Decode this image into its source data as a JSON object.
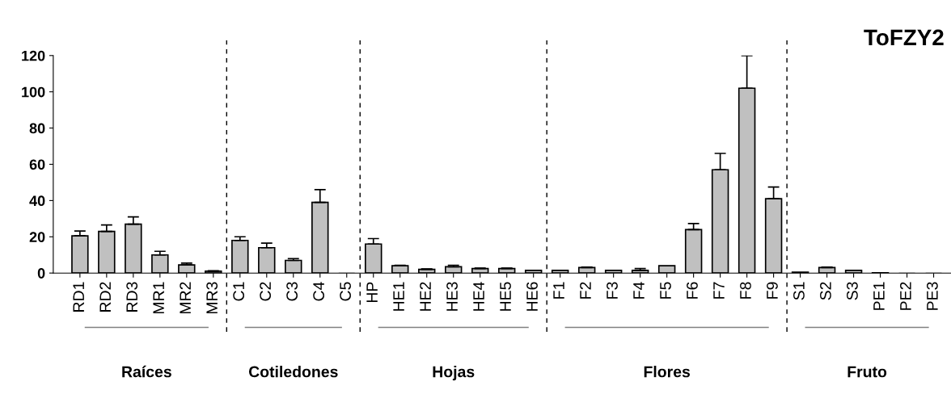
{
  "chart_data": {
    "type": "bar",
    "title": "ToFZY2",
    "categories": [
      "RD1",
      "RD2",
      "RD3",
      "MR1",
      "MR2",
      "MR3",
      "C1",
      "C2",
      "C3",
      "C4",
      "C5",
      "HP",
      "HE1",
      "HE2",
      "HE3",
      "HE4",
      "HE5",
      "HE6",
      "F1",
      "F2",
      "F3",
      "F4",
      "F5",
      "F6",
      "F7",
      "F8",
      "F9",
      "S1",
      "S2",
      "S3",
      "PE1",
      "PE2",
      "PE3"
    ],
    "values": [
      20.5,
      23,
      27,
      10,
      4.5,
      1,
      18,
      14,
      7,
      39,
      0,
      16,
      4,
      2,
      3.5,
      2.5,
      2.5,
      1.5,
      1.5,
      3,
      1.5,
      1.5,
      4,
      24,
      57,
      102,
      41,
      0.5,
      3,
      1.5,
      0.2,
      0,
      0
    ],
    "errors": [
      2.7,
      3.5,
      4,
      2,
      1,
      0.3,
      2,
      2.5,
      1,
      7,
      null,
      3,
      0.3,
      0.3,
      0.8,
      0.2,
      0.2,
      null,
      null,
      0.3,
      null,
      1,
      null,
      3.3,
      9,
      18,
      6.5,
      null,
      0.3,
      null,
      null,
      null,
      null
    ],
    "color": "#c0c0c0",
    "ylim": [
      0,
      120
    ],
    "yticks": [
      0,
      20,
      40,
      60,
      80,
      100,
      120
    ],
    "grid": false,
    "annotations": [
      "Raíces",
      "Cotiledones",
      "Hojas",
      "Flores",
      "Fruto"
    ]
  }
}
